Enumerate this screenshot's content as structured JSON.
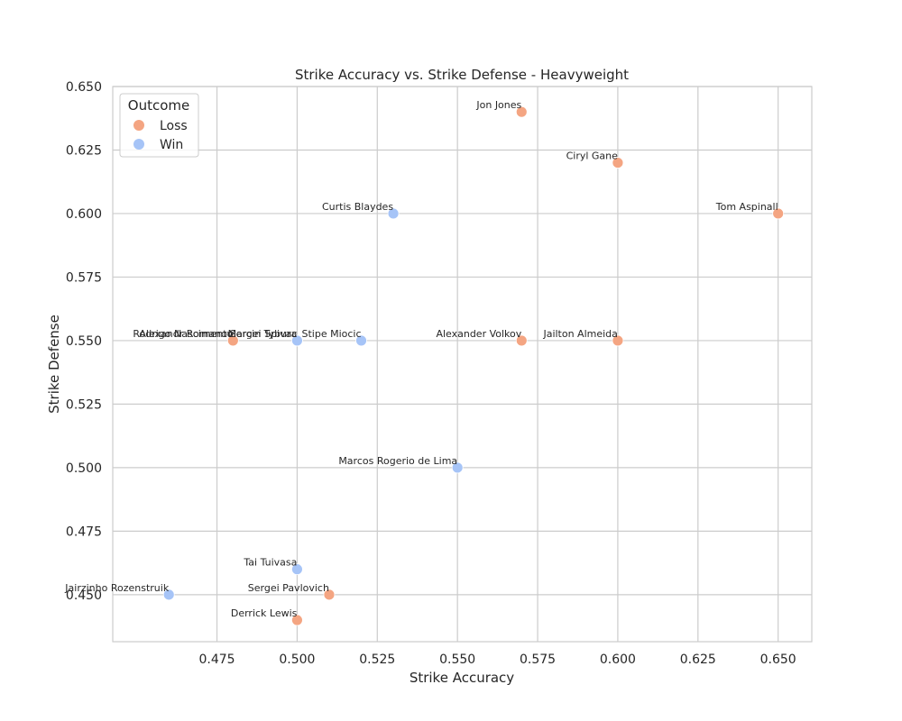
{
  "chart_data": {
    "type": "scatter",
    "title": "Strike Accuracy vs. Strike Defense - Heavyweight",
    "xlabel": "Strike Accuracy",
    "ylabel": "Strike Defense",
    "xlim": [
      0.4425,
      0.6605
    ],
    "ylim": [
      0.4315,
      0.65
    ],
    "xticks": [
      "0.475",
      "0.500",
      "0.525",
      "0.550",
      "0.575",
      "0.600",
      "0.625",
      "0.650"
    ],
    "yticks": [
      "0.450",
      "0.475",
      "0.500",
      "0.525",
      "0.550",
      "0.575",
      "0.600",
      "0.625",
      "0.650"
    ],
    "grid": true,
    "legend": {
      "title": "Outcome",
      "placement": "upper-left",
      "entries": [
        "Loss",
        "Win"
      ]
    },
    "colors": {
      "Loss": "#f4a582",
      "Win": "#a6c4f7"
    },
    "points": [
      {
        "label": "Jon Jones",
        "x": 0.57,
        "y": 0.64,
        "outcome": "Loss"
      },
      {
        "label": "Ciryl Gane",
        "x": 0.6,
        "y": 0.62,
        "outcome": "Loss"
      },
      {
        "label": "Tom Aspinall",
        "x": 0.65,
        "y": 0.6,
        "outcome": "Loss"
      },
      {
        "label": "Curtis Blaydes",
        "x": 0.53,
        "y": 0.6,
        "outcome": "Win"
      },
      {
        "label": "Alexandr Romanov",
        "x": 0.48,
        "y": 0.55,
        "outcome": "Loss"
      },
      {
        "label": "Rodrigo Nascimento",
        "x": 0.48,
        "y": 0.55,
        "outcome": "Loss"
      },
      {
        "label": "Marcin Tybura",
        "x": 0.5,
        "y": 0.55,
        "outcome": "Win"
      },
      {
        "label": "Sergei Spivac",
        "x": 0.5,
        "y": 0.55,
        "outcome": "Win"
      },
      {
        "label": "Stipe Miocic",
        "x": 0.52,
        "y": 0.55,
        "outcome": "Win"
      },
      {
        "label": "Alexander Volkov",
        "x": 0.57,
        "y": 0.55,
        "outcome": "Loss"
      },
      {
        "label": "Jailton Almeida",
        "x": 0.6,
        "y": 0.55,
        "outcome": "Loss"
      },
      {
        "label": "Marcos Rogerio de Lima",
        "x": 0.55,
        "y": 0.5,
        "outcome": "Win"
      },
      {
        "label": "Tai Tuivasa",
        "x": 0.5,
        "y": 0.46,
        "outcome": "Win"
      },
      {
        "label": "Jairzinho Rozenstruik",
        "x": 0.46,
        "y": 0.45,
        "outcome": "Win"
      },
      {
        "label": "Sergei Pavlovich",
        "x": 0.51,
        "y": 0.45,
        "outcome": "Loss"
      },
      {
        "label": "Derrick Lewis",
        "x": 0.5,
        "y": 0.44,
        "outcome": "Loss"
      }
    ]
  }
}
